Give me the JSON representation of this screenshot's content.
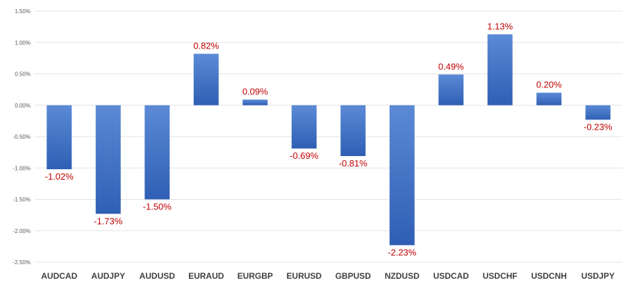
{
  "chart_data": {
    "type": "bar",
    "title": "",
    "xlabel": "",
    "ylabel": "",
    "categories": [
      "AUDCAD",
      "AUDJPY",
      "AUDUSD",
      "EURAUD",
      "EURGBP",
      "EURUSD",
      "GBPUSD",
      "NZDUSD",
      "USDCAD",
      "USDCHF",
      "USDCNH",
      "USDJPY"
    ],
    "values": [
      -1.02,
      -1.73,
      -1.5,
      0.82,
      0.09,
      -0.69,
      -0.81,
      -2.23,
      0.49,
      1.13,
      0.2,
      -0.23
    ],
    "data_labels": [
      "-1.02%",
      "-1.73%",
      "-1.50%",
      "0.82%",
      "0.09%",
      "-0.69%",
      "-0.81%",
      "-2.23%",
      "0.49%",
      "1.13%",
      "0.20%",
      "-0.23%"
    ],
    "yticks": [
      1.5,
      1.0,
      0.5,
      0.0,
      -0.5,
      -1.0,
      -1.5,
      -2.0,
      -2.5
    ],
    "ytick_labels": [
      "1.50%",
      "1.00%",
      "0.50%",
      "0.00%",
      "-0.50%",
      "-1.00%",
      "-1.50%",
      "-2.00%",
      "-2.50%"
    ],
    "ylim": [
      -2.5,
      1.5
    ],
    "grid": true,
    "legend": "none",
    "colors": {
      "bar_top": "#5b8ad6",
      "bar_bottom": "#2f5fb4",
      "data_label": "#c00000",
      "grid": "#e3e3e3",
      "axis_text": "#404040"
    }
  }
}
